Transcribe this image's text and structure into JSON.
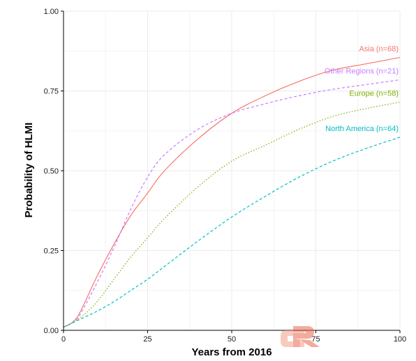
{
  "chart_data": {
    "type": "line",
    "xlabel": "Years from 2016",
    "ylabel": "Probability of HLMI",
    "xlim": [
      0,
      100
    ],
    "ylim": [
      0,
      1
    ],
    "x_ticks": [
      "0",
      "25",
      "50",
      "75",
      "100"
    ],
    "y_ticks": [
      "0.00",
      "0.25",
      "0.50",
      "0.75",
      "1.00"
    ],
    "grid": true,
    "legend": "direct labels at right end of lines",
    "series": [
      {
        "name": "Asia (n=68)",
        "color": "#F8766D",
        "dash": "solid",
        "x": [
          0,
          2,
          4,
          6,
          10,
          15,
          20,
          25,
          30,
          40,
          50,
          60,
          70,
          80,
          90,
          100
        ],
        "y": [
          0.01,
          0.02,
          0.04,
          0.08,
          0.17,
          0.27,
          0.36,
          0.43,
          0.5,
          0.6,
          0.68,
          0.735,
          0.78,
          0.815,
          0.835,
          0.855
        ]
      },
      {
        "name": "Other Regions (n=21)",
        "color": "#C77CFF",
        "dash": "dashed",
        "x": [
          0,
          2,
          4,
          6,
          10,
          15,
          20,
          25,
          30,
          40,
          50,
          60,
          70,
          80,
          90,
          100
        ],
        "y": [
          0.01,
          0.02,
          0.035,
          0.07,
          0.15,
          0.26,
          0.38,
          0.48,
          0.55,
          0.63,
          0.68,
          0.71,
          0.735,
          0.755,
          0.77,
          0.785
        ]
      },
      {
        "name": "Europe (n=58)",
        "color": "#7CAE00",
        "dash": "dotted",
        "x": [
          0,
          5,
          10,
          15,
          20,
          25,
          30,
          40,
          50,
          60,
          70,
          80,
          90,
          100
        ],
        "y": [
          0.01,
          0.04,
          0.09,
          0.16,
          0.23,
          0.29,
          0.35,
          0.45,
          0.53,
          0.58,
          0.63,
          0.67,
          0.695,
          0.715
        ]
      },
      {
        "name": "North America (n=64)",
        "color": "#00BFC4",
        "dash": "dashed",
        "x": [
          0,
          5,
          10,
          15,
          20,
          25,
          30,
          40,
          50,
          60,
          70,
          80,
          90,
          100
        ],
        "y": [
          0.01,
          0.035,
          0.06,
          0.09,
          0.125,
          0.16,
          0.2,
          0.28,
          0.355,
          0.42,
          0.48,
          0.53,
          0.57,
          0.605
        ]
      }
    ]
  }
}
